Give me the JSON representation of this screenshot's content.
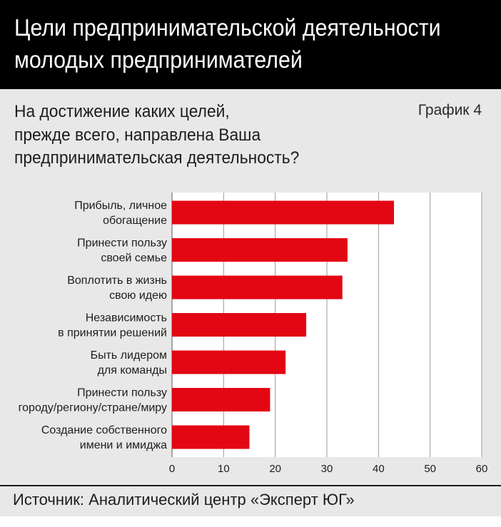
{
  "chart_number": "График 4",
  "footer": {
    "source": "Источник: Аналитический центр «Эксперт ЮГ»"
  },
  "colors": {
    "header_bg": "#000000",
    "panel_bg": "#e8e8e8",
    "plot_bg": "#ffffff",
    "bar": "#e30613"
  },
  "chart_data": {
    "type": "bar",
    "orientation": "horizontal",
    "title": "Цели предпринимательской деятельности\nмолодых предпринимателей",
    "subtitle": "На достижение каких целей,\nпрежде всего, направлена Ваша\nпредпринимательская деятельность?",
    "categories": [
      "Прибыль, личное\nобогащение",
      "Принести пользу\nсвоей семье",
      "Воплотить в жизнь\nсвою идею",
      "Независимость\nв принятии решений",
      "Быть лидером\nдля команды",
      "Принести пользу\nгороду/региону/стране/миру",
      "Создание собственного\nимени и имиджа"
    ],
    "values": [
      43,
      34,
      33,
      26,
      22,
      19,
      15
    ],
    "xlim": [
      0,
      60
    ],
    "xticks": [
      0,
      10,
      20,
      30,
      40,
      50,
      60
    ],
    "grid": true,
    "legend": false,
    "bar_color": "#e30613"
  }
}
